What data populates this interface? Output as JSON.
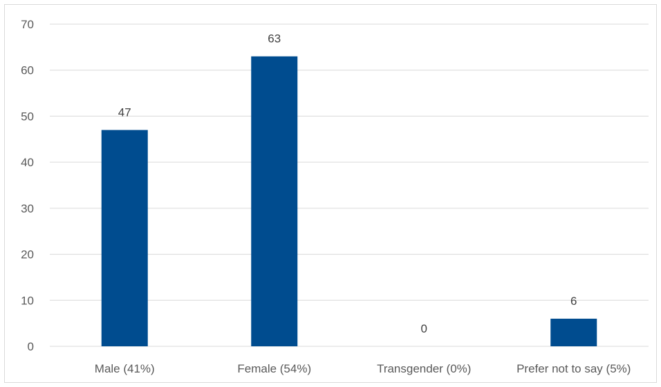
{
  "chart_data": {
    "type": "bar",
    "title": "",
    "xlabel": "",
    "ylabel": "",
    "categories": [
      "Male (41%)",
      "Female (54%)",
      "Transgender (0%)",
      "Prefer not to say (5%)"
    ],
    "values": [
      47,
      63,
      0,
      6
    ],
    "data_labels": [
      "47",
      "63",
      "0",
      "6"
    ],
    "y_ticks": [
      0,
      10,
      20,
      30,
      40,
      50,
      60,
      70
    ],
    "ylim": [
      0,
      70
    ],
    "grid": true,
    "legend": "none",
    "bar_color": "#004c8f",
    "grid_color": "#d9d9d9"
  }
}
